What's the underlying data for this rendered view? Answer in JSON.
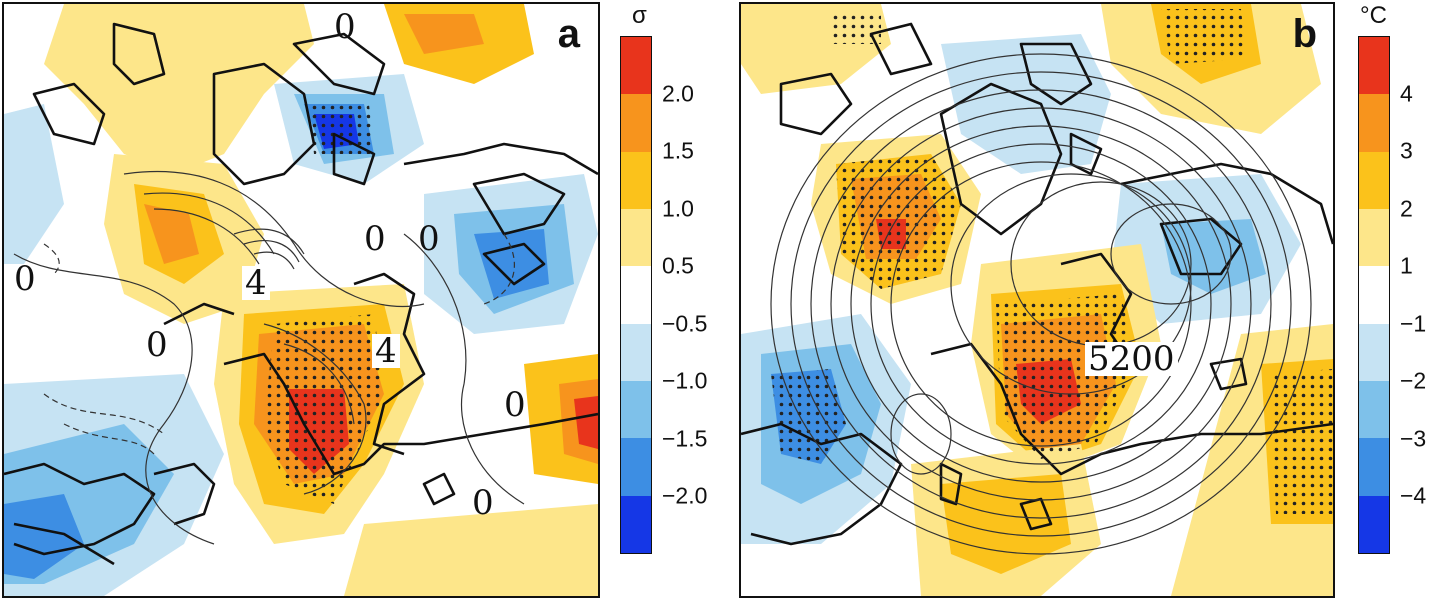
{
  "panel_a": {
    "letter": "a",
    "contour_labels": [
      "0",
      "0",
      "0",
      "0",
      "4",
      "4",
      "0",
      "0",
      "0"
    ],
    "colorbar": {
      "unit": "σ",
      "ticks": [
        "2.0",
        "1.5",
        "1.0",
        "0.5",
        "−0.5",
        "−1.0",
        "−1.5",
        "−2.0"
      ],
      "colors": [
        "#e8341c",
        "#f7941d",
        "#fbc21b",
        "#fde68a",
        "#ffffff",
        "#c6e3f3",
        "#7ec1ea",
        "#3d8ee3",
        "#1537e6"
      ]
    }
  },
  "panel_b": {
    "letter": "b",
    "contour_labels": [
      "5200"
    ],
    "colorbar": {
      "unit": "°C",
      "ticks": [
        "4",
        "3",
        "2",
        "1",
        "−1",
        "−2",
        "−3",
        "−4"
      ],
      "colors": [
        "#e8341c",
        "#f7941d",
        "#fbc21b",
        "#fde68a",
        "#ffffff",
        "#c6e3f3",
        "#7ec1ea",
        "#3d8ee3",
        "#1537e6"
      ]
    }
  }
}
